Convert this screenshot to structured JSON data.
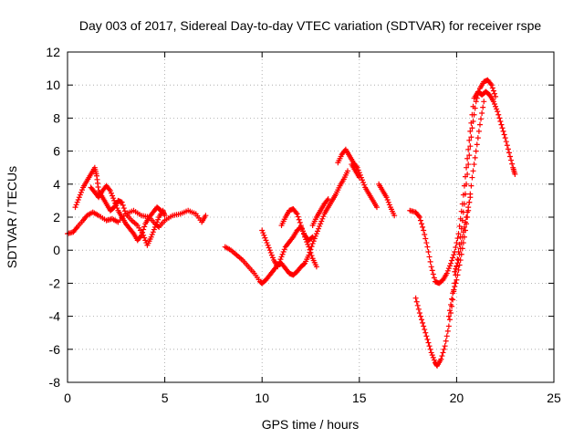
{
  "chart_data": {
    "type": "scatter",
    "title": "Day 003 of 2017, Sidereal Day-to-day VTEC variation (SDTVAR) for receiver rspe",
    "xlabel": "GPS time / hours",
    "ylabel": "SDTVAR / TECUs",
    "xlim": [
      0,
      25
    ],
    "ylim": [
      -8,
      12
    ],
    "xticks": [
      "0",
      "5",
      "10",
      "15",
      "20",
      "25"
    ],
    "yticks": [
      "-8",
      "-6",
      "-4",
      "-2",
      "0",
      "2",
      "4",
      "6",
      "8",
      "10",
      "12"
    ],
    "grid": true,
    "marker": "+",
    "color": "#ff0000",
    "segments": [
      [
        [
          0.0,
          1.0
        ],
        [
          0.3,
          1.1
        ],
        [
          0.5,
          1.4
        ],
        [
          0.8,
          1.8
        ],
        [
          1.0,
          2.1
        ],
        [
          1.3,
          2.3
        ],
        [
          1.6,
          2.1
        ],
        [
          2.0,
          1.8
        ],
        [
          2.3,
          1.9
        ],
        [
          2.6,
          1.7
        ],
        [
          3.0,
          2.2
        ],
        [
          3.4,
          2.4
        ],
        [
          3.8,
          2.1
        ],
        [
          4.2,
          2.0
        ],
        [
          4.5,
          1.6
        ],
        [
          4.7,
          1.4
        ],
        [
          5.0,
          1.8
        ],
        [
          5.4,
          2.1
        ],
        [
          5.8,
          2.2
        ],
        [
          6.2,
          2.4
        ],
        [
          6.6,
          2.2
        ],
        [
          6.9,
          1.7
        ],
        [
          7.1,
          2.1
        ]
      ],
      [
        [
          0.4,
          2.6
        ],
        [
          0.6,
          3.2
        ],
        [
          0.8,
          3.8
        ],
        [
          1.0,
          4.2
        ],
        [
          1.2,
          4.6
        ],
        [
          1.4,
          5.0
        ],
        [
          1.5,
          4.5
        ],
        [
          1.6,
          3.6
        ],
        [
          1.8,
          3.2
        ],
        [
          2.0,
          2.8
        ],
        [
          2.2,
          2.4
        ],
        [
          2.4,
          2.6
        ],
        [
          2.6,
          3.0
        ],
        [
          2.8,
          2.9
        ],
        [
          3.0,
          2.2
        ],
        [
          3.3,
          1.8
        ],
        [
          3.6,
          1.5
        ],
        [
          3.9,
          0.9
        ],
        [
          4.1,
          0.3
        ],
        [
          4.3,
          0.8
        ],
        [
          4.5,
          1.4
        ],
        [
          4.7,
          2.0
        ],
        [
          4.9,
          2.4
        ],
        [
          5.0,
          2.1
        ]
      ],
      [
        [
          1.2,
          3.8
        ],
        [
          1.4,
          3.5
        ],
        [
          1.6,
          3.2
        ],
        [
          1.8,
          3.6
        ],
        [
          2.0,
          3.9
        ],
        [
          2.2,
          3.6
        ],
        [
          2.4,
          3.0
        ],
        [
          2.6,
          2.4
        ],
        [
          2.8,
          2.0
        ],
        [
          3.0,
          1.6
        ],
        [
          3.2,
          1.3
        ],
        [
          3.4,
          1.0
        ],
        [
          3.6,
          0.6
        ],
        [
          3.8,
          0.9
        ],
        [
          4.0,
          1.6
        ],
        [
          4.2,
          2.0
        ],
        [
          4.4,
          2.3
        ],
        [
          4.6,
          2.6
        ],
        [
          4.8,
          2.4
        ]
      ],
      [
        [
          8.1,
          0.2
        ],
        [
          8.4,
          0.0
        ],
        [
          8.7,
          -0.3
        ],
        [
          9.0,
          -0.6
        ],
        [
          9.3,
          -1.0
        ],
        [
          9.6,
          -1.4
        ],
        [
          9.9,
          -1.9
        ],
        [
          10.0,
          -2.0
        ],
        [
          10.2,
          -1.8
        ],
        [
          10.4,
          -1.5
        ],
        [
          10.6,
          -1.2
        ],
        [
          10.8,
          -0.9
        ],
        [
          11.0,
          -0.8
        ],
        [
          11.2,
          -1.1
        ],
        [
          11.4,
          -1.4
        ],
        [
          11.6,
          -1.5
        ],
        [
          11.8,
          -1.3
        ],
        [
          12.0,
          -1.0
        ],
        [
          12.2,
          -0.8
        ],
        [
          12.4,
          -0.3
        ],
        [
          12.6,
          0.4
        ],
        [
          12.8,
          1.0
        ],
        [
          13.0,
          1.6
        ],
        [
          13.2,
          2.2
        ],
        [
          13.4,
          2.6
        ],
        [
          13.6,
          3.0
        ],
        [
          13.8,
          3.4
        ],
        [
          14.0,
          3.9
        ],
        [
          14.2,
          4.3
        ],
        [
          14.4,
          4.8
        ]
      ],
      [
        [
          10.0,
          1.2
        ],
        [
          10.2,
          0.6
        ],
        [
          10.4,
          0.0
        ],
        [
          10.6,
          -0.6
        ],
        [
          10.8,
          -1.0
        ],
        [
          11.0,
          -0.4
        ],
        [
          11.2,
          0.2
        ],
        [
          11.4,
          0.5
        ],
        [
          11.6,
          0.8
        ],
        [
          11.8,
          1.2
        ],
        [
          12.0,
          1.4
        ],
        [
          12.2,
          0.9
        ],
        [
          12.4,
          0.6
        ],
        [
          12.6,
          0.8
        ]
      ],
      [
        [
          11.0,
          1.5
        ],
        [
          11.2,
          2.0
        ],
        [
          11.4,
          2.4
        ],
        [
          11.6,
          2.5
        ],
        [
          11.8,
          2.2
        ],
        [
          12.0,
          1.5
        ],
        [
          12.2,
          0.8
        ],
        [
          12.4,
          0.2
        ],
        [
          12.6,
          -0.5
        ],
        [
          12.8,
          -1.0
        ]
      ],
      [
        [
          12.6,
          1.5
        ],
        [
          12.8,
          2.0
        ],
        [
          13.0,
          2.4
        ],
        [
          13.2,
          2.8
        ],
        [
          13.4,
          3.1
        ]
      ],
      [
        [
          13.9,
          5.3
        ],
        [
          14.1,
          5.8
        ],
        [
          14.3,
          6.1
        ],
        [
          14.5,
          5.7
        ],
        [
          14.7,
          5.3
        ],
        [
          14.9,
          5.0
        ],
        [
          15.1,
          4.4
        ],
        [
          15.3,
          3.8
        ],
        [
          15.5,
          3.4
        ],
        [
          15.7,
          3.0
        ],
        [
          15.9,
          2.6
        ]
      ],
      [
        [
          14.6,
          5.2
        ],
        [
          14.8,
          4.8
        ],
        [
          15.0,
          4.4
        ]
      ],
      [
        [
          16.0,
          4.0
        ],
        [
          16.2,
          3.6
        ],
        [
          16.4,
          3.2
        ],
        [
          16.6,
          2.6
        ],
        [
          16.8,
          2.1
        ]
      ],
      [
        [
          17.6,
          2.4
        ],
        [
          17.9,
          2.3
        ],
        [
          18.1,
          2.0
        ],
        [
          18.3,
          1.2
        ],
        [
          18.5,
          0.2
        ],
        [
          18.7,
          -1.0
        ],
        [
          18.9,
          -1.9
        ],
        [
          19.1,
          -2.0
        ],
        [
          19.3,
          -1.8
        ],
        [
          19.5,
          -1.4
        ],
        [
          19.7,
          -0.8
        ],
        [
          19.9,
          -0.1
        ],
        [
          20.1,
          1.0
        ],
        [
          20.3,
          2.8
        ],
        [
          20.5,
          5.0
        ],
        [
          20.7,
          7.2
        ],
        [
          20.9,
          9.2
        ],
        [
          21.1,
          9.6
        ],
        [
          21.3,
          9.4
        ],
        [
          21.5,
          9.6
        ],
        [
          21.7,
          9.4
        ],
        [
          21.9,
          9.0
        ],
        [
          22.1,
          8.4
        ],
        [
          22.3,
          7.6
        ],
        [
          22.5,
          6.8
        ],
        [
          22.7,
          5.9
        ],
        [
          22.9,
          5.0
        ],
        [
          23.0,
          4.6
        ]
      ],
      [
        [
          17.9,
          -2.9
        ],
        [
          18.1,
          -3.8
        ],
        [
          18.3,
          -4.6
        ],
        [
          18.5,
          -5.4
        ],
        [
          18.7,
          -6.2
        ],
        [
          18.9,
          -6.8
        ],
        [
          19.0,
          -7.0
        ],
        [
          19.2,
          -6.6
        ],
        [
          19.4,
          -5.8
        ],
        [
          19.6,
          -4.6
        ],
        [
          19.8,
          -3.0
        ],
        [
          20.0,
          -1.0
        ],
        [
          20.2,
          0.8
        ],
        [
          20.4,
          2.8
        ],
        [
          20.6,
          5.2
        ],
        [
          20.8,
          7.4
        ],
        [
          21.0,
          9.0
        ],
        [
          21.2,
          9.8
        ],
        [
          21.4,
          10.2
        ],
        [
          21.6,
          10.3
        ],
        [
          21.8,
          10.0
        ],
        [
          22.0,
          9.3
        ]
      ],
      [
        [
          19.6,
          -4.0
        ],
        [
          19.8,
          -2.6
        ],
        [
          20.0,
          -1.8
        ],
        [
          20.2,
          -0.6
        ],
        [
          20.4,
          0.8
        ],
        [
          20.6,
          2.4
        ],
        [
          20.8,
          4.4
        ],
        [
          21.0,
          6.0
        ],
        [
          21.2,
          7.6
        ],
        [
          21.4,
          9.0
        ]
      ],
      [
        [
          19.9,
          -1.3
        ],
        [
          20.1,
          -0.6
        ],
        [
          20.3,
          0.8
        ],
        [
          20.5,
          2.0
        ],
        [
          20.7,
          3.2
        ]
      ]
    ]
  }
}
